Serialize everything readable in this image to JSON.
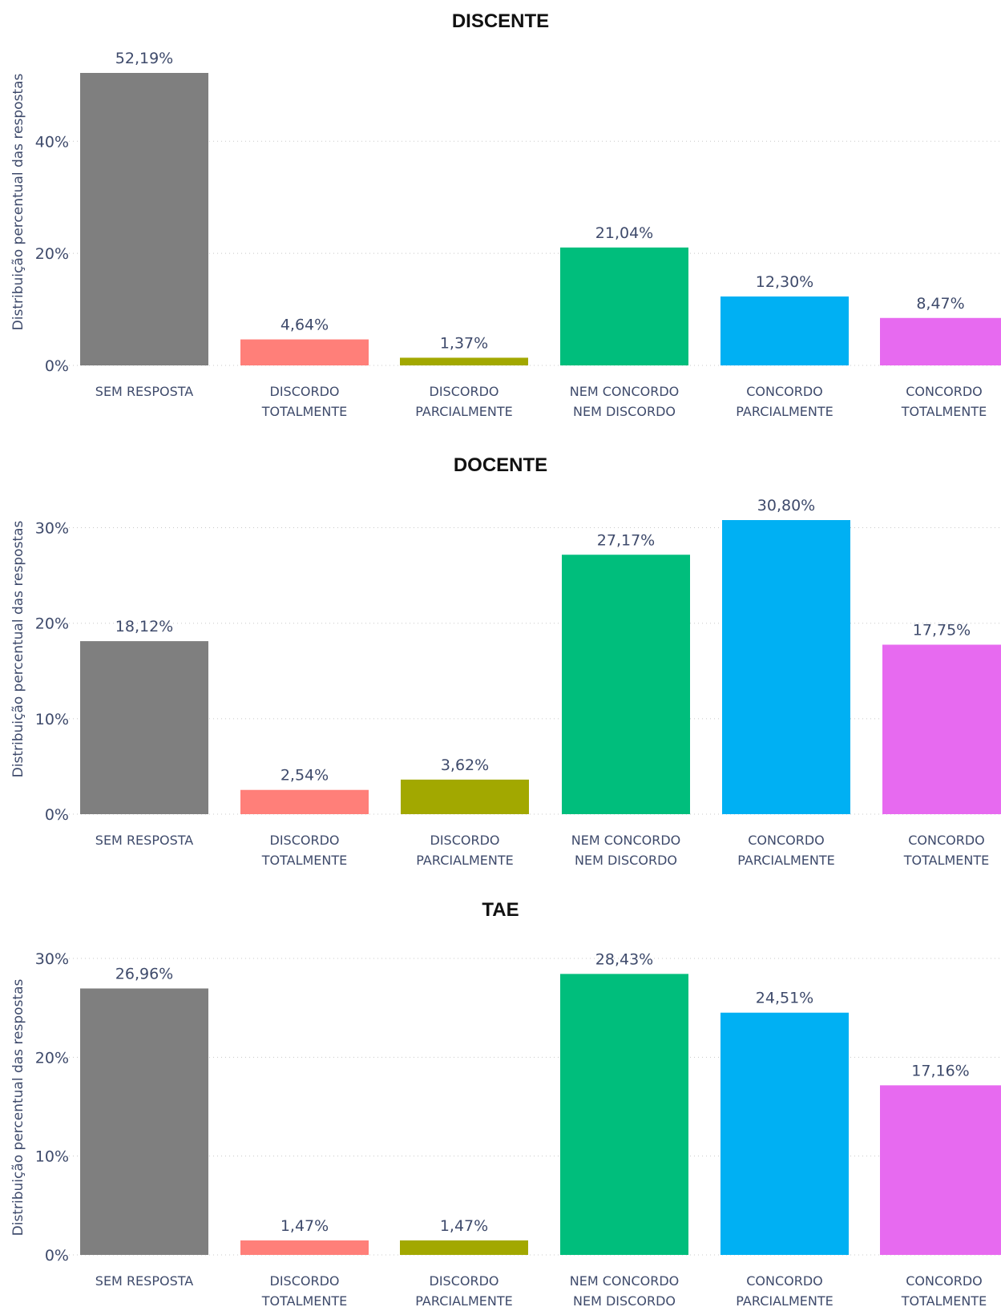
{
  "chart_data": [
    {
      "type": "bar",
      "title": "DISCENTE",
      "ylabel": "Distribuição percentual das respostas",
      "xlabel": "",
      "categories": [
        "SEM RESPOSTA",
        "DISCORDO TOTALMENTE",
        "DISCORDO PARCIALMENTE",
        "NEM CONCORDO NEM DISCORDO",
        "CONCORDO PARCIALMENTE",
        "CONCORDO TOTALMENTE"
      ],
      "values": [
        52.19,
        4.64,
        1.37,
        21.04,
        12.3,
        8.47
      ],
      "value_labels": [
        "52,19%",
        "4,64%",
        "1,37%",
        "21,04%",
        "12,30%",
        "8,47%"
      ],
      "yticks": [
        0,
        20,
        40
      ],
      "ytick_labels": [
        "0%",
        "20%",
        "40%"
      ],
      "ylim": [
        0,
        52.19
      ],
      "grid": true
    },
    {
      "type": "bar",
      "title": "DOCENTE",
      "ylabel": "Distribuição percentual das respostas",
      "xlabel": "",
      "categories": [
        "SEM RESPOSTA",
        "DISCORDO TOTALMENTE",
        "DISCORDO PARCIALMENTE",
        "NEM CONCORDO NEM DISCORDO",
        "CONCORDO PARCIALMENTE",
        "CONCORDO TOTALMENTE"
      ],
      "values": [
        18.12,
        2.54,
        3.62,
        27.17,
        30.8,
        17.75
      ],
      "value_labels": [
        "18,12%",
        "2,54%",
        "3,62%",
        "27,17%",
        "30,80%",
        "17,75%"
      ],
      "yticks": [
        0,
        10,
        20,
        30
      ],
      "ytick_labels": [
        "0%",
        "10%",
        "20%",
        "30%"
      ],
      "ylim": [
        0,
        30.8
      ],
      "grid": true
    },
    {
      "type": "bar",
      "title": "TAE",
      "ylabel": "Distribuição percentual das respostas",
      "xlabel": "",
      "categories": [
        "SEM RESPOSTA",
        "DISCORDO TOTALMENTE",
        "DISCORDO PARCIALMENTE",
        "NEM CONCORDO NEM DISCORDO",
        "CONCORDO PARCIALMENTE",
        "CONCORDO TOTALMENTE"
      ],
      "values": [
        26.96,
        1.47,
        1.47,
        28.43,
        24.51,
        17.16
      ],
      "value_labels": [
        "26,96%",
        "1,47%",
        "1,47%",
        "28,43%",
        "24,51%",
        "17,16%"
      ],
      "yticks": [
        0,
        10,
        20,
        30
      ],
      "ytick_labels": [
        "0%",
        "10%",
        "20%",
        "30%"
      ],
      "ylim": [
        0,
        30
      ],
      "grid": true
    }
  ],
  "colors": {
    "SEM RESPOSTA": "#7f7f7f",
    "DISCORDO TOTALMENTE": "#ff7f79",
    "DISCORDO PARCIALMENTE": "#a2a800",
    "NEM CONCORDO NEM DISCORDO": "#00be7c",
    "CONCORDO PARCIALMENTE": "#00b0f3",
    "CONCORDO TOTALMENTE": "#e76af0"
  }
}
